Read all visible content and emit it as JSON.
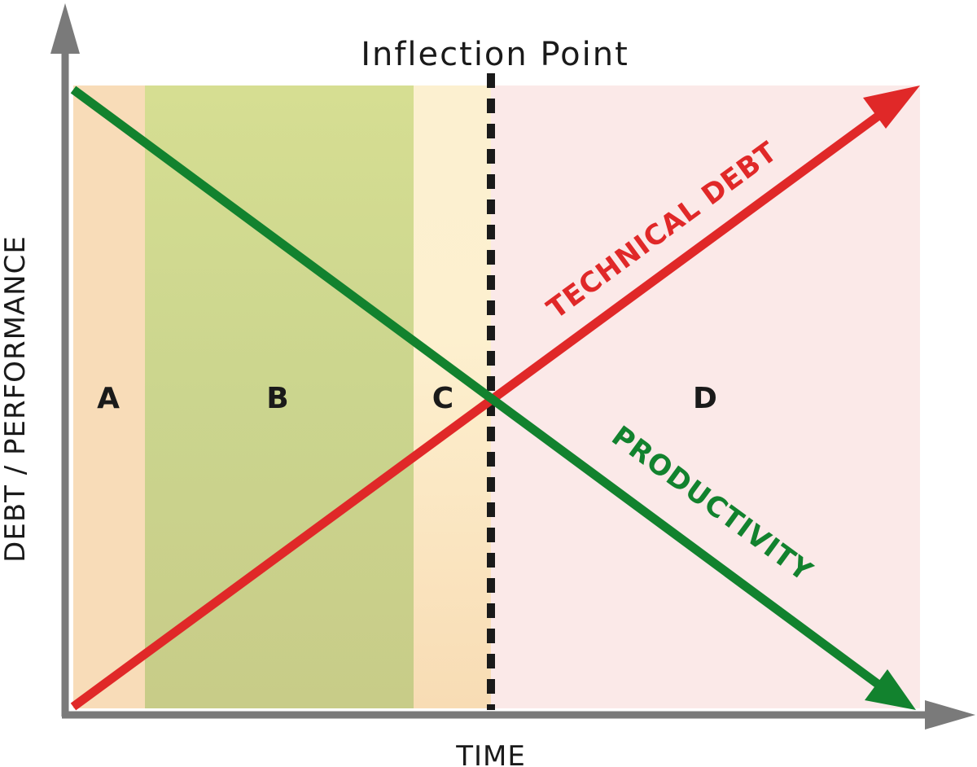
{
  "title": "Inflection Point",
  "axes": {
    "x_label": "TIME",
    "y_label": "DEBT / PERFORMANCE"
  },
  "zones": [
    {
      "label": "A",
      "color": "#f8dcb8"
    },
    {
      "label": "B",
      "color": "#c9d48e"
    },
    {
      "label": "C",
      "color": "#fbe8c4"
    },
    {
      "label": "D",
      "color": "#fbe9e8"
    }
  ],
  "lines": {
    "technical_debt": {
      "label": "TECHNICAL DEBT",
      "color": "#e02828"
    },
    "productivity": {
      "label": "PRODUCTIVITY",
      "color": "#12822e"
    }
  },
  "colors": {
    "axis": "#7a7a7a",
    "inflection_line": "#1a1a1a"
  }
}
